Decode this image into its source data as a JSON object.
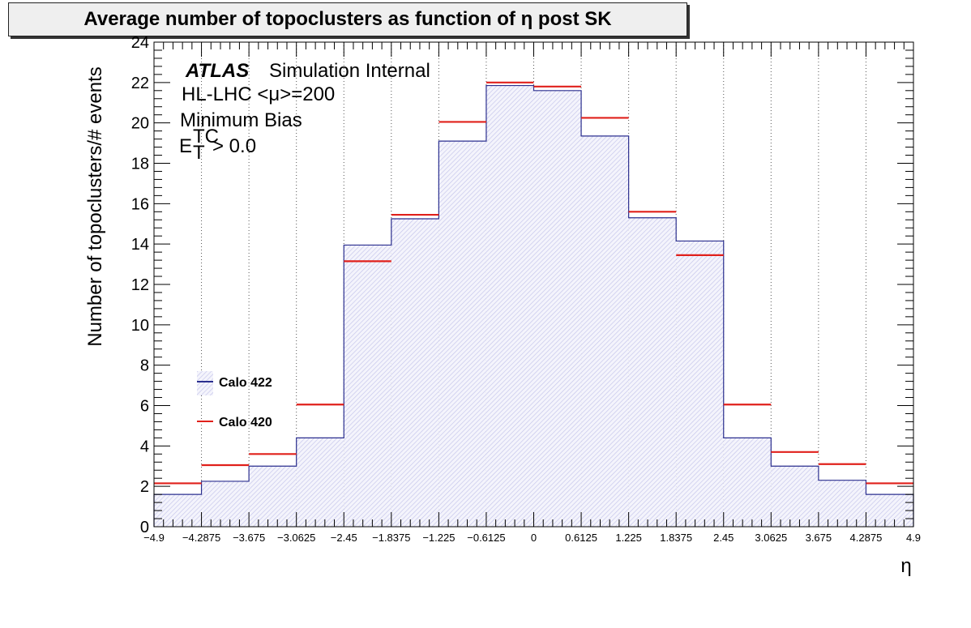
{
  "chart_data": {
    "type": "bar",
    "title": "Average number of topoclusters as function of η post SK",
    "xlabel": "η",
    "ylabel": "Number of topoclusters/# events",
    "xlim": [
      -4.9,
      4.9
    ],
    "ylim": [
      0,
      24
    ],
    "grid": "vertical dotted",
    "x_edges": [
      -4.9,
      -4.2875,
      -3.675,
      -3.0625,
      -2.45,
      -1.8375,
      -1.225,
      -0.6125,
      0,
      0.6125,
      1.225,
      1.8375,
      2.45,
      3.0625,
      3.675,
      4.2875,
      4.9
    ],
    "x_tick_labels": [
      "−4.9",
      "−4.2875",
      "−3.675",
      "−3.0625",
      "−2.45",
      "−1.8375",
      "−1.225",
      "−0.6125",
      "0",
      "0.6125",
      "1.225",
      "1.8375",
      "2.45",
      "3.0625",
      "3.675",
      "4.2875",
      "4.9"
    ],
    "y_tick_labels": [
      "0",
      "2",
      "4",
      "6",
      "8",
      "10",
      "12",
      "14",
      "16",
      "18",
      "20",
      "22",
      "24"
    ],
    "series": [
      {
        "name": "Calo 422",
        "color": "#2b2f8f",
        "style": "filled-step",
        "values": [
          1.6,
          2.25,
          3.0,
          4.4,
          13.95,
          15.25,
          19.1,
          21.85,
          21.6,
          19.35,
          15.3,
          14.15,
          4.4,
          3.0,
          2.3,
          1.6
        ]
      },
      {
        "name": "Calo 420",
        "color": "#e0201b",
        "style": "horizontal-markers",
        "values": [
          2.15,
          3.05,
          3.6,
          6.05,
          13.15,
          15.45,
          20.05,
          22.0,
          21.8,
          20.25,
          15.6,
          13.45,
          6.05,
          3.7,
          3.1,
          2.15
        ]
      }
    ],
    "annotations": {
      "atlas": "ATLAS",
      "atlas_suffix": "Simulation Internal",
      "line2": "HL-LHC <μ>=200",
      "line3": "Minimum Bias",
      "cut_base": "E",
      "cut_sup": "TC",
      "cut_sub": "T",
      "cut_rest": " > 0.0"
    },
    "legend_position": "lower-left"
  }
}
